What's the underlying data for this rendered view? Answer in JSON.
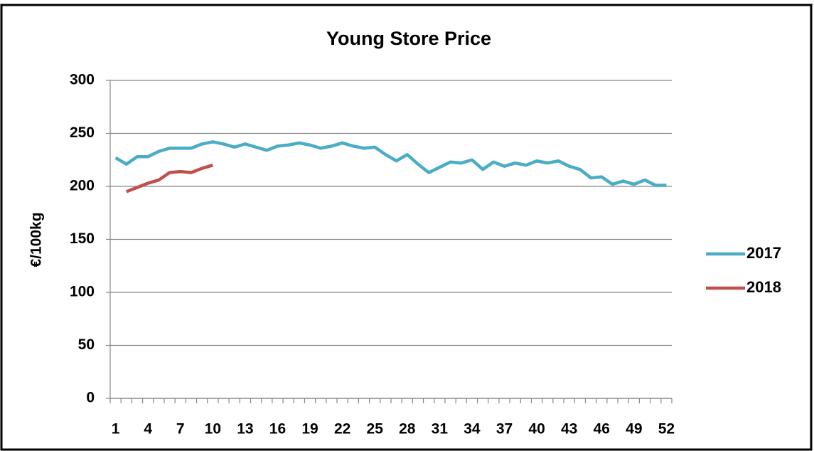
{
  "chart_data": {
    "type": "line",
    "title": "Young Store Price",
    "y_label": "€/100kg",
    "categories": [
      1,
      null,
      null,
      4,
      null,
      null,
      7,
      null,
      null,
      10,
      null,
      null,
      13,
      null,
      null,
      16,
      null,
      null,
      19,
      null,
      null,
      22,
      null,
      null,
      25,
      null,
      null,
      28,
      null,
      null,
      31,
      null,
      null,
      34,
      null,
      null,
      37,
      null,
      null,
      40,
      null,
      null,
      43,
      null,
      null,
      46,
      null,
      null,
      49,
      null,
      null,
      52
    ],
    "series": [
      {
        "name": "2017",
        "color": "#4bacc6",
        "values": [
          227,
          221,
          228,
          228,
          233,
          236,
          236,
          236,
          240,
          242,
          240,
          237,
          240,
          237,
          234,
          238,
          239,
          241,
          239,
          236,
          238,
          241,
          238,
          236,
          237,
          230,
          224,
          230,
          221,
          213,
          218,
          223,
          222,
          225,
          216,
          223,
          219,
          222,
          220,
          224,
          222,
          224,
          219,
          216,
          208,
          209,
          202,
          205,
          202,
          206,
          201,
          201
        ]
      },
      {
        "name": "2018",
        "color": "#c0504d",
        "values": [
          null,
          195,
          199,
          203,
          206,
          213,
          214,
          213,
          217,
          220,
          null,
          null,
          null,
          null,
          null,
          null,
          null,
          null,
          null,
          null,
          null,
          null,
          null,
          null,
          null,
          null,
          null,
          null,
          null,
          null,
          null,
          null,
          null,
          null,
          null,
          null,
          null,
          null,
          null,
          null,
          null,
          null,
          null,
          null,
          null,
          null,
          null,
          null,
          null,
          null,
          null,
          null
        ]
      }
    ],
    "ylim": [
      0,
      300
    ],
    "yticks": [
      0,
      50,
      100,
      150,
      200,
      250,
      300
    ],
    "grid": true,
    "legend": "right"
  }
}
